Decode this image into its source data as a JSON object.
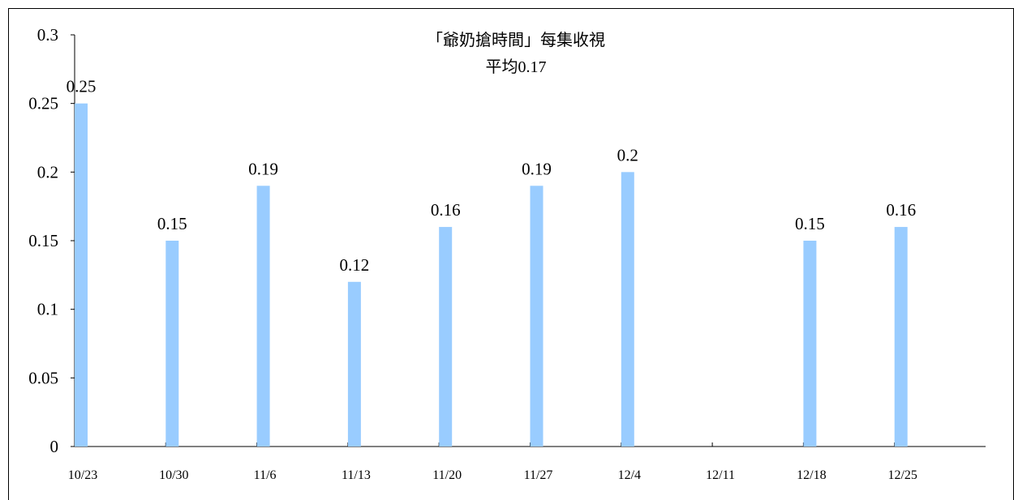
{
  "chart_data": {
    "type": "bar",
    "title": "「爺奶搶時間」每集收視",
    "subtitle": "平均0.17",
    "xlabel": "",
    "ylabel": "",
    "categories": [
      "10/23",
      "10/30",
      "11/6",
      "11/13",
      "11/20",
      "11/27",
      "12/4",
      "12/11",
      "12/18",
      "12/25"
    ],
    "values": [
      0.25,
      0.15,
      0.19,
      0.12,
      0.16,
      0.19,
      0.2,
      null,
      0.15,
      0.16
    ],
    "data_labels": [
      "0.25",
      "0.15",
      "0.19",
      "0.12",
      "0.16",
      "0.19",
      "0.2",
      "",
      "0.15",
      "0.16"
    ],
    "ylim": [
      0,
      0.3
    ],
    "yticks": [
      0,
      0.05,
      0.1,
      0.15,
      0.2,
      0.25,
      0.3
    ],
    "ytick_labels": [
      "0",
      "0.05",
      "0.1",
      "0.15",
      "0.2",
      "0.25",
      "0.3"
    ],
    "grid": false,
    "legend": "none",
    "bar_color": "#99ccff"
  }
}
